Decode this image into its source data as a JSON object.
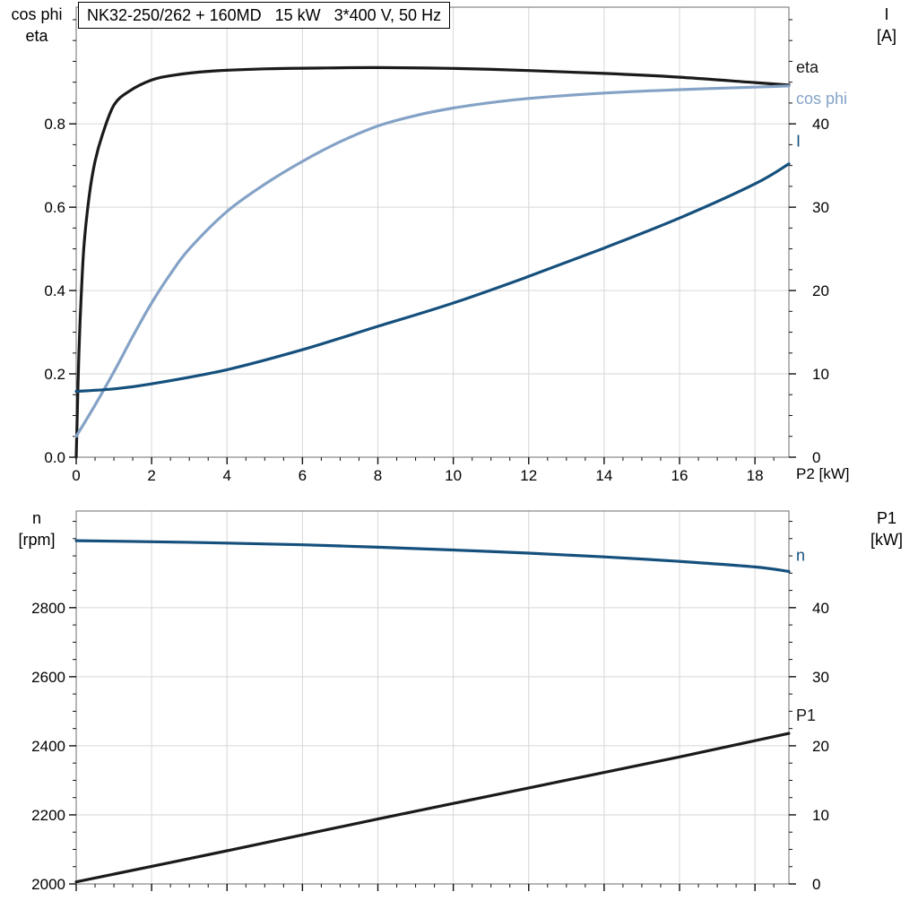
{
  "colors": {
    "black": "#1a1a1a",
    "light_blue": "#84a2c6",
    "dark_blue": "#15507d",
    "grid": "#d6d6d6",
    "frame": "#6e6e6e"
  },
  "chart_data": [
    {
      "type": "line",
      "title": "NK32-250/262 + 160MD   15 kW   3*400 V, 50 Hz",
      "x_axis": {
        "lim": [
          0,
          18.9
        ],
        "ticks": [
          0,
          2,
          4,
          6,
          8,
          10,
          12,
          14,
          16,
          18
        ],
        "tick_labels": [
          "0",
          "2",
          "4",
          "6",
          "8",
          "10",
          "12",
          "14",
          "16",
          "18"
        ],
        "minor_step": 0.5,
        "end_label": "P2 [kW]"
      },
      "y_left": {
        "label_lines": [
          "cos phi",
          "eta"
        ],
        "lim": [
          0,
          1.08
        ],
        "ticks": [
          0,
          0.2,
          0.4,
          0.6,
          0.8
        ],
        "tick_labels": [
          "0.0",
          "0.2",
          "0.4",
          "0.6",
          "0.8"
        ],
        "minor_step": 0.05
      },
      "y_right": {
        "label_lines": [
          "I",
          "[A]"
        ],
        "lim": [
          0,
          54
        ],
        "ticks": [
          0,
          10,
          20,
          30,
          40
        ],
        "tick_labels": [
          "0",
          "10",
          "20",
          "30",
          "40"
        ],
        "minor_step": 2.5
      },
      "grid": true,
      "series": [
        {
          "name": "eta",
          "axis": "left",
          "color": "#1a1a1a",
          "label": "eta",
          "label_y": 0.936,
          "x": [
            0,
            0.05,
            0.1,
            0.2,
            0.35,
            0.5,
            0.7,
            1.0,
            1.4,
            2,
            2.6,
            3.5,
            5,
            6.5,
            8,
            10,
            12,
            14,
            16,
            18,
            18.9
          ],
          "y": [
            0,
            0.18,
            0.32,
            0.5,
            0.63,
            0.71,
            0.775,
            0.845,
            0.878,
            0.905,
            0.917,
            0.926,
            0.932,
            0.934,
            0.935,
            0.933,
            0.928,
            0.921,
            0.912,
            0.899,
            0.893
          ]
        },
        {
          "name": "cos phi",
          "axis": "left",
          "color": "#84a2c6",
          "label": "cos phi",
          "label_y": 0.861,
          "x": [
            0,
            0.5,
            1,
            1.5,
            2,
            2.5,
            3,
            4,
            5,
            6,
            7,
            8,
            9,
            10,
            11,
            12,
            14,
            16,
            18,
            18.9
          ],
          "y": [
            0.05,
            0.125,
            0.205,
            0.29,
            0.37,
            0.44,
            0.5,
            0.59,
            0.655,
            0.71,
            0.757,
            0.795,
            0.82,
            0.838,
            0.851,
            0.861,
            0.874,
            0.882,
            0.888,
            0.891
          ]
        },
        {
          "name": "I",
          "axis": "right",
          "color": "#15507d",
          "label": "I",
          "label_y": 37.9,
          "x": [
            0,
            1,
            2,
            4,
            6,
            8,
            10,
            12,
            14,
            16,
            18,
            18.9
          ],
          "y": [
            7.9,
            8.2,
            8.8,
            10.5,
            12.9,
            15.7,
            18.5,
            21.7,
            25.1,
            28.7,
            32.8,
            35.2
          ]
        }
      ]
    },
    {
      "type": "line",
      "x_axis": {
        "lim": [
          0,
          18.9
        ],
        "ticks": [
          0,
          2,
          4,
          6,
          8,
          10,
          12,
          14,
          16,
          18
        ],
        "tick_labels": [],
        "minor_step": 0.5,
        "end_label": ""
      },
      "y_left": {
        "label_lines": [
          "n",
          "[rpm]"
        ],
        "lim": [
          2000,
          3080
        ],
        "ticks": [
          2000,
          2200,
          2400,
          2600,
          2800
        ],
        "tick_labels": [
          "2000",
          "2200",
          "2400",
          "2600",
          "2800"
        ],
        "minor_step": 50
      },
      "y_right": {
        "label_lines": [
          "P1",
          "[kW]"
        ],
        "lim": [
          0,
          54
        ],
        "ticks": [
          0,
          10,
          20,
          30,
          40
        ],
        "tick_labels": [
          "0",
          "10",
          "20",
          "30",
          "40"
        ],
        "minor_step": 2.5
      },
      "grid": true,
      "series": [
        {
          "name": "n",
          "axis": "left",
          "color": "#15507d",
          "label": "n",
          "label_y": 2951,
          "x": [
            0,
            2,
            4,
            6,
            8,
            10,
            12,
            14,
            16,
            18,
            18.9
          ],
          "y": [
            2994,
            2991,
            2987,
            2982,
            2975,
            2967,
            2958,
            2947,
            2934,
            2918,
            2905
          ]
        },
        {
          "name": "P1",
          "axis": "right",
          "color": "#1a1a1a",
          "label": "P1",
          "label_y": 24.4,
          "x": [
            0,
            4,
            8,
            12,
            16,
            18.9
          ],
          "y": [
            0.3,
            4.8,
            9.4,
            13.9,
            18.4,
            21.8
          ]
        }
      ]
    }
  ]
}
